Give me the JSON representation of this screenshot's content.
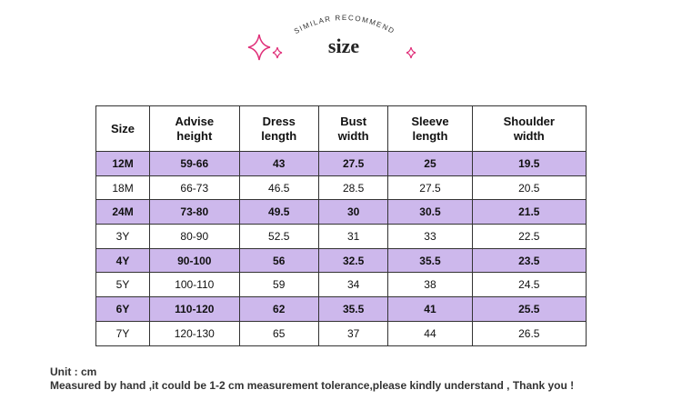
{
  "header": {
    "subtitle": "SIMILAR RECOMMEND",
    "title": "size"
  },
  "table": {
    "columns": [
      [
        "Size"
      ],
      [
        "Advise",
        "height"
      ],
      [
        "Dress",
        "length"
      ],
      [
        "Bust",
        "width"
      ],
      [
        "Sleeve",
        "length"
      ],
      [
        "Shoulder",
        "width"
      ]
    ],
    "rows": [
      [
        "12M",
        "59-66",
        43,
        27.5,
        25,
        19.5
      ],
      [
        "18M",
        "66-73",
        46.5,
        28.5,
        27.5,
        20.5
      ],
      [
        "24M",
        "73-80",
        49.5,
        30,
        30.5,
        21.5
      ],
      [
        "3Y",
        "80-90",
        52.5,
        31,
        33,
        22.5
      ],
      [
        "4Y",
        "90-100",
        56,
        32.5,
        35.5,
        23.5
      ],
      [
        "5Y",
        "100-110",
        59,
        34,
        38,
        24.5
      ],
      [
        "6Y",
        "110-120",
        62,
        35.5,
        41,
        25.5
      ],
      [
        "7Y",
        "120-130",
        65,
        37,
        44,
        26.5
      ]
    ]
  },
  "notes": [
    "Unit : cm",
    "Measured by hand ,it could be 1-2 cm measurement tolerance,please kindly understand , Thank you !"
  ]
}
